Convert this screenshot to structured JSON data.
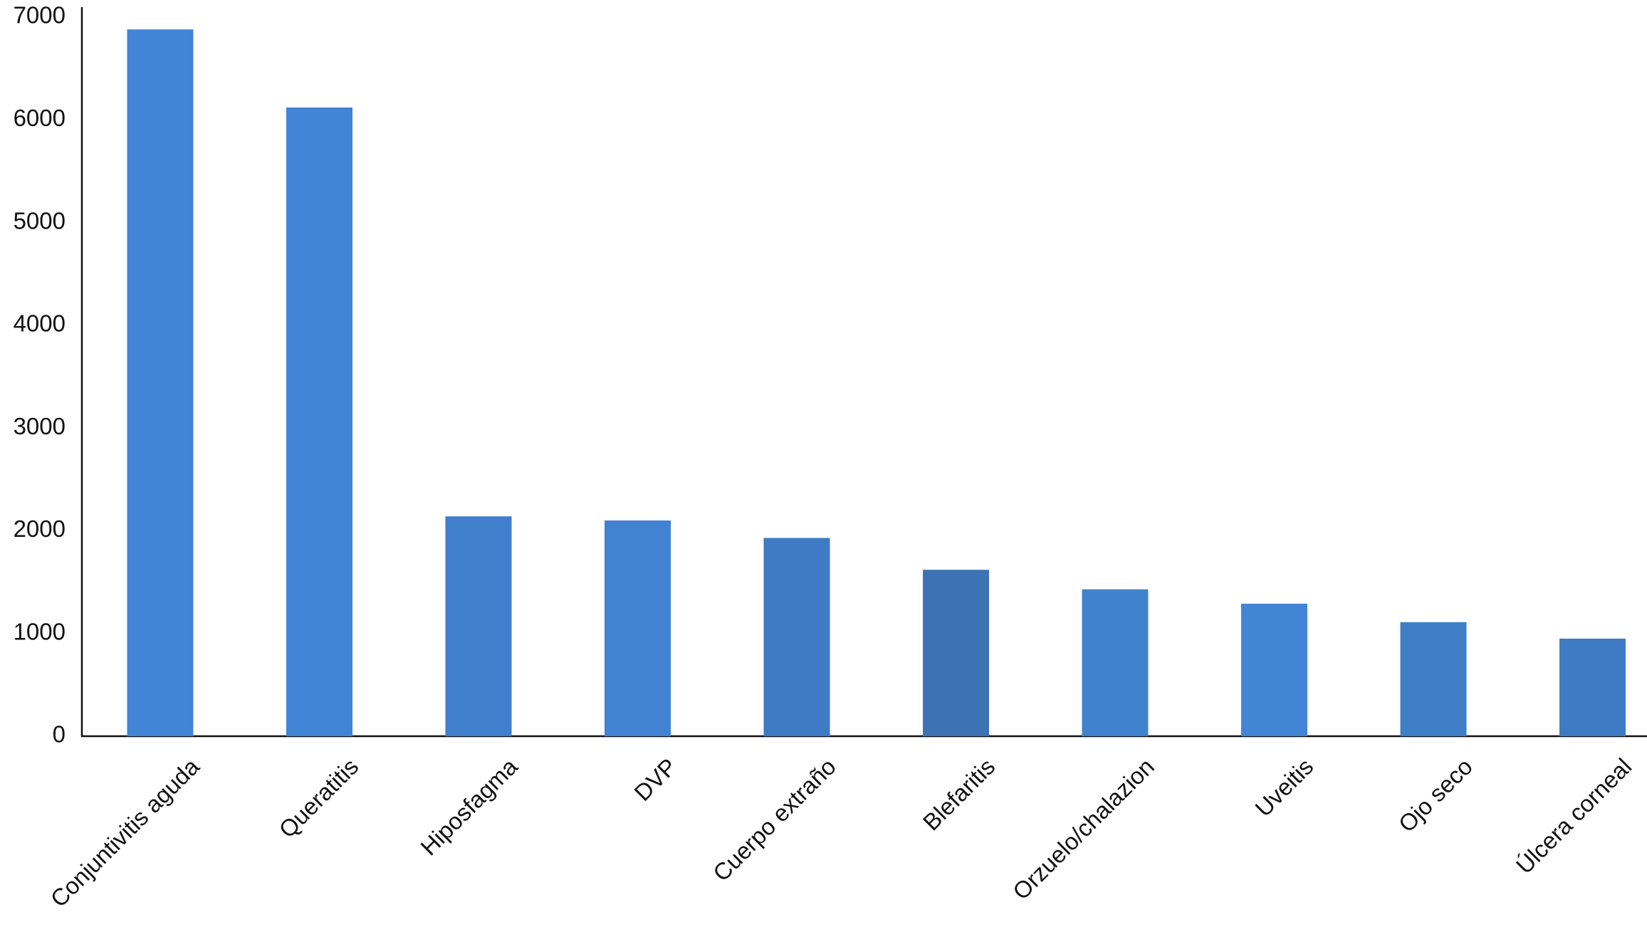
{
  "chart_data": {
    "type": "bar",
    "categories": [
      "Conjuntivitis aguda",
      "Queratitis",
      "Hiposfagma",
      "DVP",
      "Cuerpo extraño",
      "Blefaritis",
      "Orzuelo/chalazion",
      "Uveitis",
      "Ojo seco",
      "Úlcera corneal"
    ],
    "values": [
      6880,
      6120,
      2140,
      2100,
      1930,
      1620,
      1430,
      1290,
      1110,
      950
    ],
    "colors": [
      "#4285d6",
      "#4285d6",
      "#3f7fcc",
      "#4182d2",
      "#3f7bc4",
      "#3d72b4",
      "#4182ce",
      "#4285d4",
      "#3f7fc8",
      "#3f7bc4"
    ],
    "ylim": [
      0,
      7000
    ],
    "yticks": [
      0,
      1000,
      2000,
      3000,
      4000,
      5000,
      6000,
      7000
    ],
    "grid": false
  }
}
